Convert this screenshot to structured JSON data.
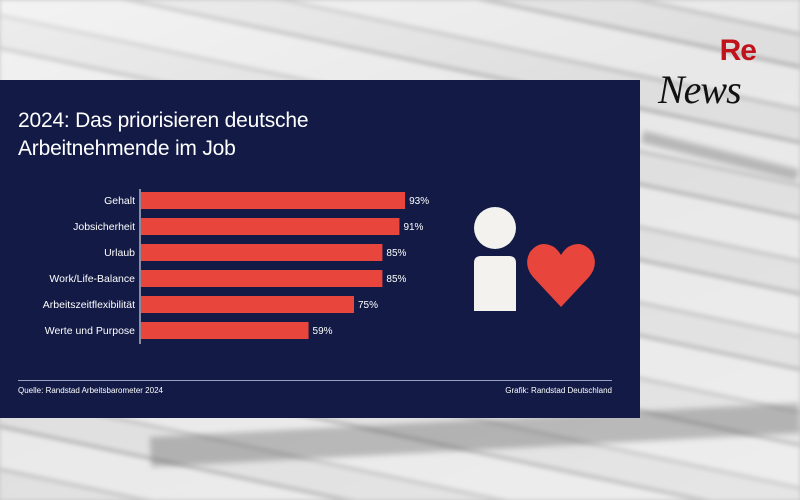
{
  "chart_data": {
    "type": "bar",
    "orientation": "horizontal",
    "title_line1": "2024: Das priorisieren deutsche",
    "title_line2": "Arbeitnehmende im Job",
    "categories": [
      "Gehalt",
      "Jobsicherheit",
      "Urlaub",
      "Work/Life-Balance",
      "Arbeitszeitflexibilität",
      "Werte und Purpose"
    ],
    "values": [
      93,
      91,
      85,
      85,
      75,
      59
    ],
    "value_labels": [
      "93%",
      "91%",
      "85%",
      "85%",
      "75%",
      "59%"
    ],
    "xlim": [
      0,
      100
    ],
    "grid": false,
    "legend": "none",
    "bar_color": "#e8453c"
  },
  "footer": {
    "source": "Quelle: Randstad Arbeitsbarometer 2024",
    "credit": "Grafik: Randstad Deutschland"
  },
  "icons": [
    "person-icon",
    "heart-icon"
  ],
  "colors": {
    "card_background": "#121a45",
    "icon_light": "#f4f2ee",
    "heart": "#e8453c"
  },
  "logo": {
    "re": "Re",
    "news": "News"
  }
}
